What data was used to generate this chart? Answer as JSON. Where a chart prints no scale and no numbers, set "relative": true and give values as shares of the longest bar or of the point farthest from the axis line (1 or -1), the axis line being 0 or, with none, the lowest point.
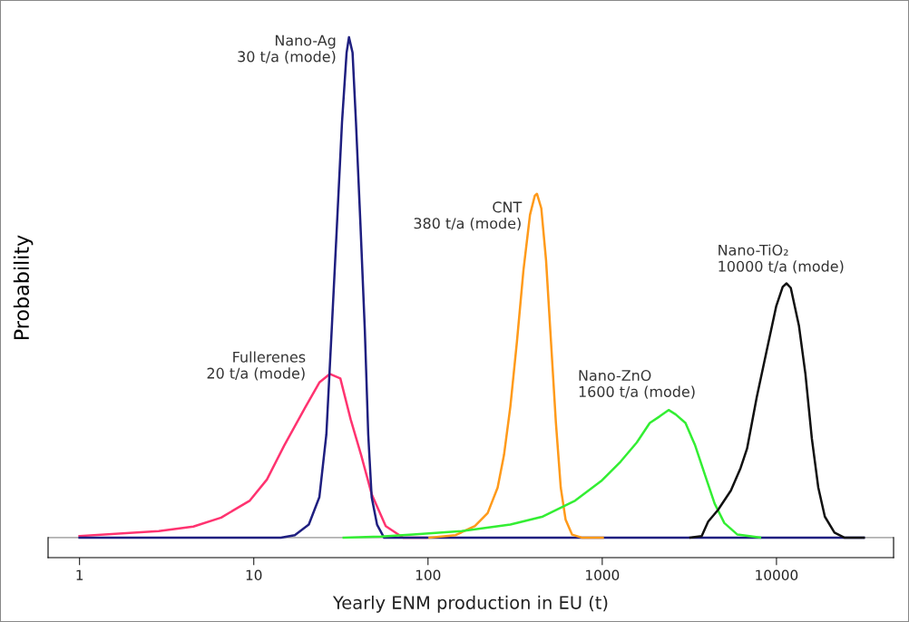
{
  "chart_data": {
    "type": "line",
    "xlabel": "Yearly ENM production in EU (t)",
    "ylabel": "Probability",
    "log": "x",
    "relative": true,
    "xlim": [
      0.66,
      47000
    ],
    "xticks": [
      1,
      10,
      100,
      1000,
      10000
    ],
    "series": [
      {
        "color": "#ff3370",
        "x": [
          1.0,
          2.85,
          4.5,
          6.5,
          9.5,
          11.9,
          15.0,
          19.8,
          23.8,
          27.3,
          31.4,
          36.0,
          41.4,
          47.5,
          57.2,
          72,
          98
        ],
        "values": [
          0.003,
          0.013,
          0.022,
          0.04,
          0.074,
          0.116,
          0.185,
          0.261,
          0.31,
          0.327,
          0.318,
          0.236,
          0.164,
          0.087,
          0.023,
          0,
          0
        ]
      },
      {
        "color": "#1f1f80",
        "x": [
          1,
          14.3,
          17.2,
          20.7,
          23.8,
          26.1,
          28.0,
          30.0,
          32.1,
          34.1,
          35.2,
          36.9,
          38.6,
          41.0,
          43.4,
          45.4,
          47.5,
          51.0,
          55.9,
          31680
        ],
        "values": [
          0,
          0,
          0.005,
          0.026,
          0.081,
          0.206,
          0.414,
          0.622,
          0.83,
          0.969,
          1,
          0.969,
          0.83,
          0.622,
          0.414,
          0.206,
          0.081,
          0.026,
          0,
          0
        ]
      },
      {
        "color": "#ff9a1a",
        "x": [
          102,
          144,
          186,
          220,
          251,
          273,
          297,
          324,
          353,
          385,
          410,
          422,
          447,
          476,
          508,
          542,
          578,
          616,
          671,
          763,
          1007
        ],
        "values": [
          0,
          0.005,
          0.023,
          0.049,
          0.1,
          0.165,
          0.262,
          0.392,
          0.534,
          0.645,
          0.683,
          0.687,
          0.658,
          0.554,
          0.392,
          0.23,
          0.1,
          0.036,
          0.006,
          0,
          0
        ]
      },
      {
        "color": "#33ee33",
        "x": [
          32.8,
          53.6,
          82,
          156,
          297,
          456,
          700,
          986,
          1276,
          1579,
          1874,
          2132,
          2404,
          2642,
          3005,
          3415,
          3881,
          4416,
          5023,
          5970,
          8050
        ],
        "values": [
          0,
          0.002,
          0.006,
          0.013,
          0.026,
          0.042,
          0.074,
          0.113,
          0.152,
          0.19,
          0.229,
          0.242,
          0.255,
          0.246,
          0.229,
          0.184,
          0.126,
          0.068,
          0.029,
          0.006,
          0
        ]
      },
      {
        "color": "#111111",
        "x": [
          3206,
          3722,
          4055,
          4614,
          5475,
          6223,
          6781,
          7711,
          8770,
          9960,
          10860,
          11430,
          12080,
          13450,
          14660,
          15960,
          17380,
          18950,
          21520,
          24480,
          31680
        ],
        "values": [
          0,
          0.003,
          0.032,
          0.055,
          0.094,
          0.139,
          0.178,
          0.281,
          0.372,
          0.462,
          0.501,
          0.508,
          0.499,
          0.424,
          0.327,
          0.198,
          0.1,
          0.042,
          0.01,
          0,
          0
        ]
      }
    ],
    "annotations": [
      {
        "text": "Nano-Ag\n30 t/a (mode)",
        "x": 35.2,
        "y": 1
      },
      {
        "text": "Fullerenes\n20 t/a (mode)",
        "x": 27.3,
        "y": 0.327
      },
      {
        "text": "CNT\n380 t/a (mode)",
        "x": 422,
        "y": 0.687
      },
      {
        "text": "Nano-ZnO\n1600 t/a (mode)",
        "x": 2404,
        "y": 0.255
      },
      {
        "text": "Nano-TiO₂\n10000 t/a (mode)",
        "x": 11430,
        "y": 0.508
      }
    ]
  }
}
